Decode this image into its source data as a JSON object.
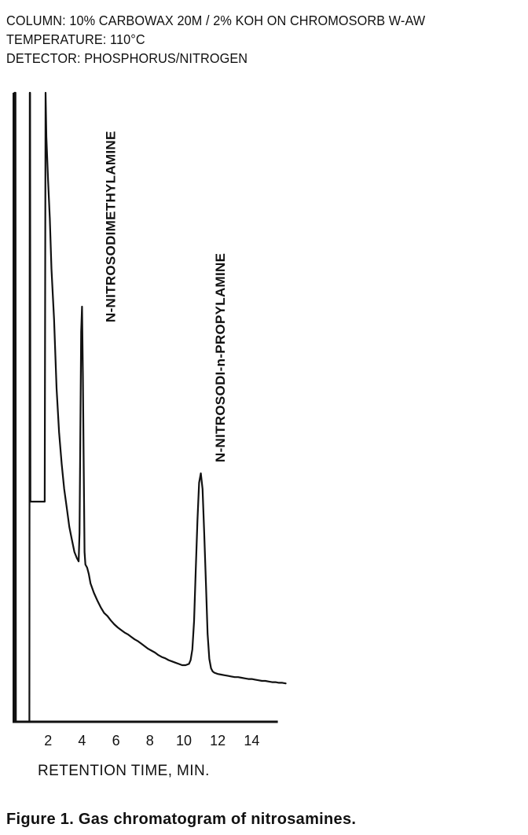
{
  "header": {
    "column": "COLUMN: 10% CARBOWAX 20M / 2% KOH ON CHROMOSORB W-AW",
    "temperature": "TEMPERATURE: 110°C",
    "detector": "DETECTOR:  PHOSPHORUS/NITROGEN"
  },
  "caption": "Figure 1.  Gas chromatogram of nitrosamines.",
  "chart_data": {
    "type": "line",
    "xlabel": "RETENTION TIME, MIN.",
    "ylabel": "",
    "xlim": [
      0,
      16
    ],
    "ylim": [
      0,
      100
    ],
    "x_ticks": [
      2,
      4,
      6,
      8,
      10,
      12,
      14
    ],
    "grid": false,
    "series": [
      {
        "x": [
          0.0,
          0.02,
          0.05,
          0.08,
          0.1,
          0.9,
          0.92,
          0.94,
          0.96,
          1.8,
          1.85,
          1.9,
          2.0,
          2.1,
          2.2,
          2.35,
          2.5,
          2.65,
          2.8,
          2.95,
          3.1,
          3.25,
          3.4,
          3.55,
          3.7,
          3.8,
          3.85,
          3.9,
          3.95,
          4.0,
          4.05,
          4.1,
          4.15,
          4.2,
          4.3,
          4.4,
          4.5,
          4.7,
          4.9,
          5.1,
          5.3,
          5.5,
          5.7,
          5.9,
          6.1,
          6.3,
          6.5,
          6.7,
          6.9,
          7.1,
          7.3,
          7.5,
          7.7,
          7.9,
          8.1,
          8.3,
          8.5,
          8.7,
          8.9,
          9.1,
          9.3,
          9.5,
          9.7,
          9.9,
          10.1,
          10.3,
          10.4,
          10.5,
          10.6,
          10.7,
          10.8,
          10.9,
          11.0,
          11.1,
          11.2,
          11.3,
          11.4,
          11.5,
          11.6,
          11.7,
          11.8,
          11.9,
          12.0,
          12.2,
          12.4,
          12.6,
          12.8,
          13.0,
          13.2,
          13.4,
          13.6,
          13.8,
          14.0,
          14.2,
          14.4,
          14.6,
          14.8,
          15.0,
          15.2,
          15.4,
          15.6,
          15.8,
          16.0
        ],
        "y": [
          0,
          100,
          100,
          100,
          0,
          0,
          100,
          100,
          35,
          35,
          100,
          93,
          86,
          80,
          72,
          64,
          53,
          46,
          41,
          37,
          34,
          31,
          29,
          27,
          26,
          25.5,
          30,
          45,
          62,
          66,
          55,
          40,
          27,
          25,
          24.5,
          23.5,
          22,
          20.5,
          19.3,
          18.2,
          17.3,
          16.8,
          16.1,
          15.5,
          15,
          14.6,
          14.2,
          13.9,
          13.5,
          13.1,
          12.8,
          12.4,
          12,
          11.6,
          11.3,
          11,
          10.6,
          10.3,
          10.1,
          9.8,
          9.6,
          9.4,
          9.2,
          9,
          9,
          9.2,
          9.8,
          11.5,
          16,
          24,
          32,
          38,
          39.5,
          37,
          30,
          22,
          14,
          10,
          8.5,
          8,
          7.8,
          7.7,
          7.6,
          7.5,
          7.4,
          7.3,
          7.2,
          7.1,
          7.1,
          7,
          6.9,
          6.8,
          6.8,
          6.7,
          6.6,
          6.5,
          6.5,
          6.4,
          6.3,
          6.3,
          6.2,
          6.2,
          6.1
        ]
      }
    ],
    "annotations": [
      {
        "text": "N-NITROSODIMETHYLAMINE",
        "x": 4.0
      },
      {
        "text": "N-NITROSODI-n-PROPYLAMINE",
        "x": 11.1
      }
    ]
  }
}
